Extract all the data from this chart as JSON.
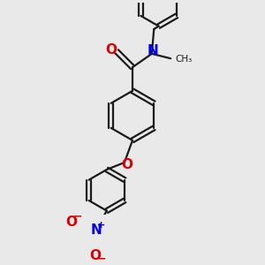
{
  "background_color": "#e9e9e9",
  "bond_color": "#1a1a1a",
  "N_color": "#0000ee",
  "O_color": "#dd0000",
  "lw": 1.6,
  "figsize": [
    3.0,
    3.0
  ],
  "dpi": 100,
  "xlim": [
    -0.5,
    2.1
  ],
  "ylim": [
    -1.6,
    2.0
  ]
}
